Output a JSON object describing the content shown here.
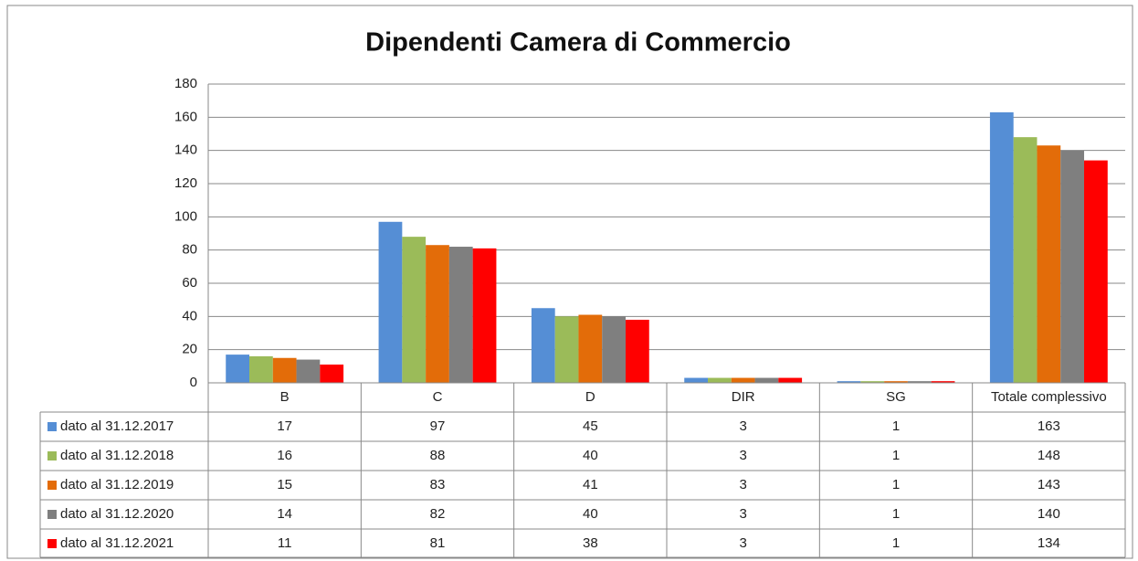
{
  "chart_data": {
    "type": "bar",
    "title": "Dipendenti Camera di Commercio",
    "categories": [
      "B",
      "C",
      "D",
      "DIR",
      "SG",
      "Totale complessivo"
    ],
    "series": [
      {
        "name": "dato al 31.12.2017",
        "color": "#558ed5",
        "values": [
          17,
          97,
          45,
          3,
          1,
          163
        ]
      },
      {
        "name": "dato al 31.12.2018",
        "color": "#9bbb59",
        "values": [
          16,
          88,
          40,
          3,
          1,
          148
        ]
      },
      {
        "name": "dato al 31.12.2019",
        "color": "#e36c09",
        "values": [
          15,
          83,
          41,
          3,
          1,
          143
        ]
      },
      {
        "name": "dato al 31.12.2020",
        "color": "#7f7f7f",
        "values": [
          14,
          82,
          40,
          3,
          1,
          140
        ]
      },
      {
        "name": "dato al 31.12.2021",
        "color": "#ff0000",
        "values": [
          11,
          81,
          38,
          3,
          1,
          134
        ]
      }
    ],
    "ylim": [
      0,
      180
    ],
    "yticks": [
      0,
      20,
      40,
      60,
      80,
      100,
      120,
      140,
      160,
      180
    ],
    "grid": true
  }
}
